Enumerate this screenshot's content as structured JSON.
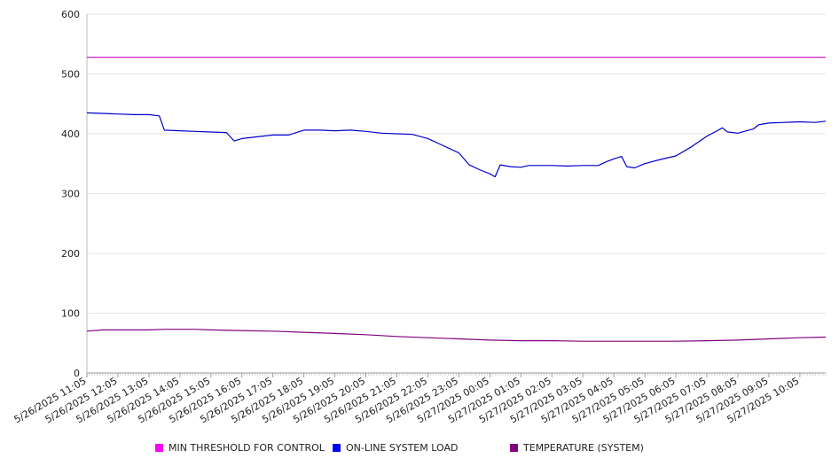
{
  "chart_data": {
    "type": "line",
    "title": "",
    "xlabel": "",
    "ylabel": "",
    "ylim": [
      0,
      600
    ],
    "y_ticks": [
      0,
      100,
      200,
      300,
      400,
      500,
      600
    ],
    "grid": "horizontal",
    "legend_position": "bottom",
    "x_range": [
      "5/26/2025 11:05",
      "5/27/2025 10:55"
    ],
    "x_tick_labels": [
      "5/26/2025 11:05",
      "5/26/2025 12:05",
      "5/26/2025 13:05",
      "5/26/2025 14:05",
      "5/26/2025 15:05",
      "5/26/2025 16:05",
      "5/26/2025 17:05",
      "5/26/2025 18:05",
      "5/26/2025 19:05",
      "5/26/2025 20:05",
      "5/26/2025 21:05",
      "5/26/2025 22:05",
      "5/26/2025 23:05",
      "5/27/2025 00:05",
      "5/27/2025 01:05",
      "5/27/2025 02:05",
      "5/27/2025 03:05",
      "5/27/2025 04:05",
      "5/27/2025 05:05",
      "5/27/2025 06:05",
      "5/27/2025 07:05",
      "5/27/2025 08:05",
      "5/27/2025 09:05",
      "5/27/2025 10:05"
    ],
    "series": [
      {
        "name": "MIN THRESHOLD FOR CONTROL",
        "color": "#cc22cc",
        "legend_color": "#ff00ff",
        "points": [
          [
            "5/26/2025 11:05",
            528
          ],
          [
            "5/27/2025 10:55",
            528
          ]
        ]
      },
      {
        "name": "ON-LINE SYSTEM LOAD",
        "color": "#0000cc",
        "legend_color": "#0000ff",
        "points": [
          [
            "5/26/2025 11:05",
            435
          ],
          [
            "5/26/2025 11:35",
            434
          ],
          [
            "5/26/2025 12:05",
            433
          ],
          [
            "5/26/2025 12:35",
            432
          ],
          [
            "5/26/2025 13:05",
            432
          ],
          [
            "5/26/2025 13:25",
            430
          ],
          [
            "5/26/2025 13:35",
            406
          ],
          [
            "5/26/2025 14:05",
            405
          ],
          [
            "5/26/2025 14:35",
            404
          ],
          [
            "5/26/2025 15:05",
            403
          ],
          [
            "5/26/2025 15:35",
            402
          ],
          [
            "5/26/2025 15:50",
            388
          ],
          [
            "5/26/2025 16:05",
            392
          ],
          [
            "5/26/2025 16:35",
            395
          ],
          [
            "5/26/2025 17:05",
            398
          ],
          [
            "5/26/2025 17:35",
            398
          ],
          [
            "5/26/2025 18:05",
            406
          ],
          [
            "5/26/2025 18:35",
            406
          ],
          [
            "5/26/2025 19:05",
            405
          ],
          [
            "5/26/2025 19:35",
            406
          ],
          [
            "5/26/2025 20:05",
            404
          ],
          [
            "5/26/2025 20:35",
            401
          ],
          [
            "5/26/2025 21:05",
            400
          ],
          [
            "5/26/2025 21:35",
            399
          ],
          [
            "5/26/2025 22:05",
            392
          ],
          [
            "5/26/2025 22:35",
            380
          ],
          [
            "5/26/2025 23:05",
            368
          ],
          [
            "5/26/2025 23:25",
            348
          ],
          [
            "5/26/2025 23:45",
            340
          ],
          [
            "5/27/2025 00:05",
            333
          ],
          [
            "5/27/2025 00:15",
            328
          ],
          [
            "5/27/2025 00:25",
            348
          ],
          [
            "5/27/2025 00:45",
            345
          ],
          [
            "5/27/2025 01:05",
            344
          ],
          [
            "5/27/2025 01:20",
            347
          ],
          [
            "5/27/2025 02:05",
            347
          ],
          [
            "5/27/2025 02:35",
            346
          ],
          [
            "5/27/2025 03:05",
            347
          ],
          [
            "5/27/2025 03:35",
            347
          ],
          [
            "5/27/2025 03:50",
            353
          ],
          [
            "5/27/2025 04:05",
            358
          ],
          [
            "5/27/2025 04:20",
            362
          ],
          [
            "5/27/2025 04:30",
            345
          ],
          [
            "5/27/2025 04:45",
            343
          ],
          [
            "5/27/2025 05:05",
            350
          ],
          [
            "5/27/2025 05:35",
            357
          ],
          [
            "5/27/2025 06:05",
            363
          ],
          [
            "5/27/2025 06:35",
            378
          ],
          [
            "5/27/2025 07:05",
            396
          ],
          [
            "5/27/2025 07:25",
            405
          ],
          [
            "5/27/2025 07:35",
            410
          ],
          [
            "5/27/2025 07:45",
            403
          ],
          [
            "5/27/2025 08:05",
            401
          ],
          [
            "5/27/2025 08:35",
            408
          ],
          [
            "5/27/2025 08:45",
            415
          ],
          [
            "5/27/2025 09:05",
            418
          ],
          [
            "5/27/2025 09:35",
            419
          ],
          [
            "5/27/2025 10:05",
            420
          ],
          [
            "5/27/2025 10:35",
            419
          ],
          [
            "5/27/2025 10:55",
            421
          ]
        ]
      },
      {
        "name": "TEMPERATURE (SYSTEM)",
        "color": "#800080",
        "legend_color": "#800080",
        "points": [
          [
            "5/26/2025 11:05",
            70
          ],
          [
            "5/26/2025 11:35",
            72
          ],
          [
            "5/26/2025 13:05",
            72
          ],
          [
            "5/26/2025 13:35",
            73
          ],
          [
            "5/26/2025 14:35",
            73
          ],
          [
            "5/26/2025 15:05",
            72
          ],
          [
            "5/26/2025 16:05",
            71
          ],
          [
            "5/26/2025 17:05",
            70
          ],
          [
            "5/26/2025 18:05",
            68
          ],
          [
            "5/26/2025 19:05",
            66
          ],
          [
            "5/26/2025 20:05",
            64
          ],
          [
            "5/26/2025 21:05",
            61
          ],
          [
            "5/26/2025 22:05",
            59
          ],
          [
            "5/26/2025 23:05",
            57
          ],
          [
            "5/27/2025 00:05",
            55
          ],
          [
            "5/27/2025 01:05",
            54
          ],
          [
            "5/27/2025 02:05",
            54
          ],
          [
            "5/27/2025 03:05",
            53
          ],
          [
            "5/27/2025 04:05",
            53
          ],
          [
            "5/27/2025 05:05",
            53
          ],
          [
            "5/27/2025 06:05",
            53
          ],
          [
            "5/27/2025 07:05",
            54
          ],
          [
            "5/27/2025 08:05",
            55
          ],
          [
            "5/27/2025 09:05",
            57
          ],
          [
            "5/27/2025 10:05",
            59
          ],
          [
            "5/27/2025 10:55",
            60
          ]
        ]
      }
    ]
  }
}
